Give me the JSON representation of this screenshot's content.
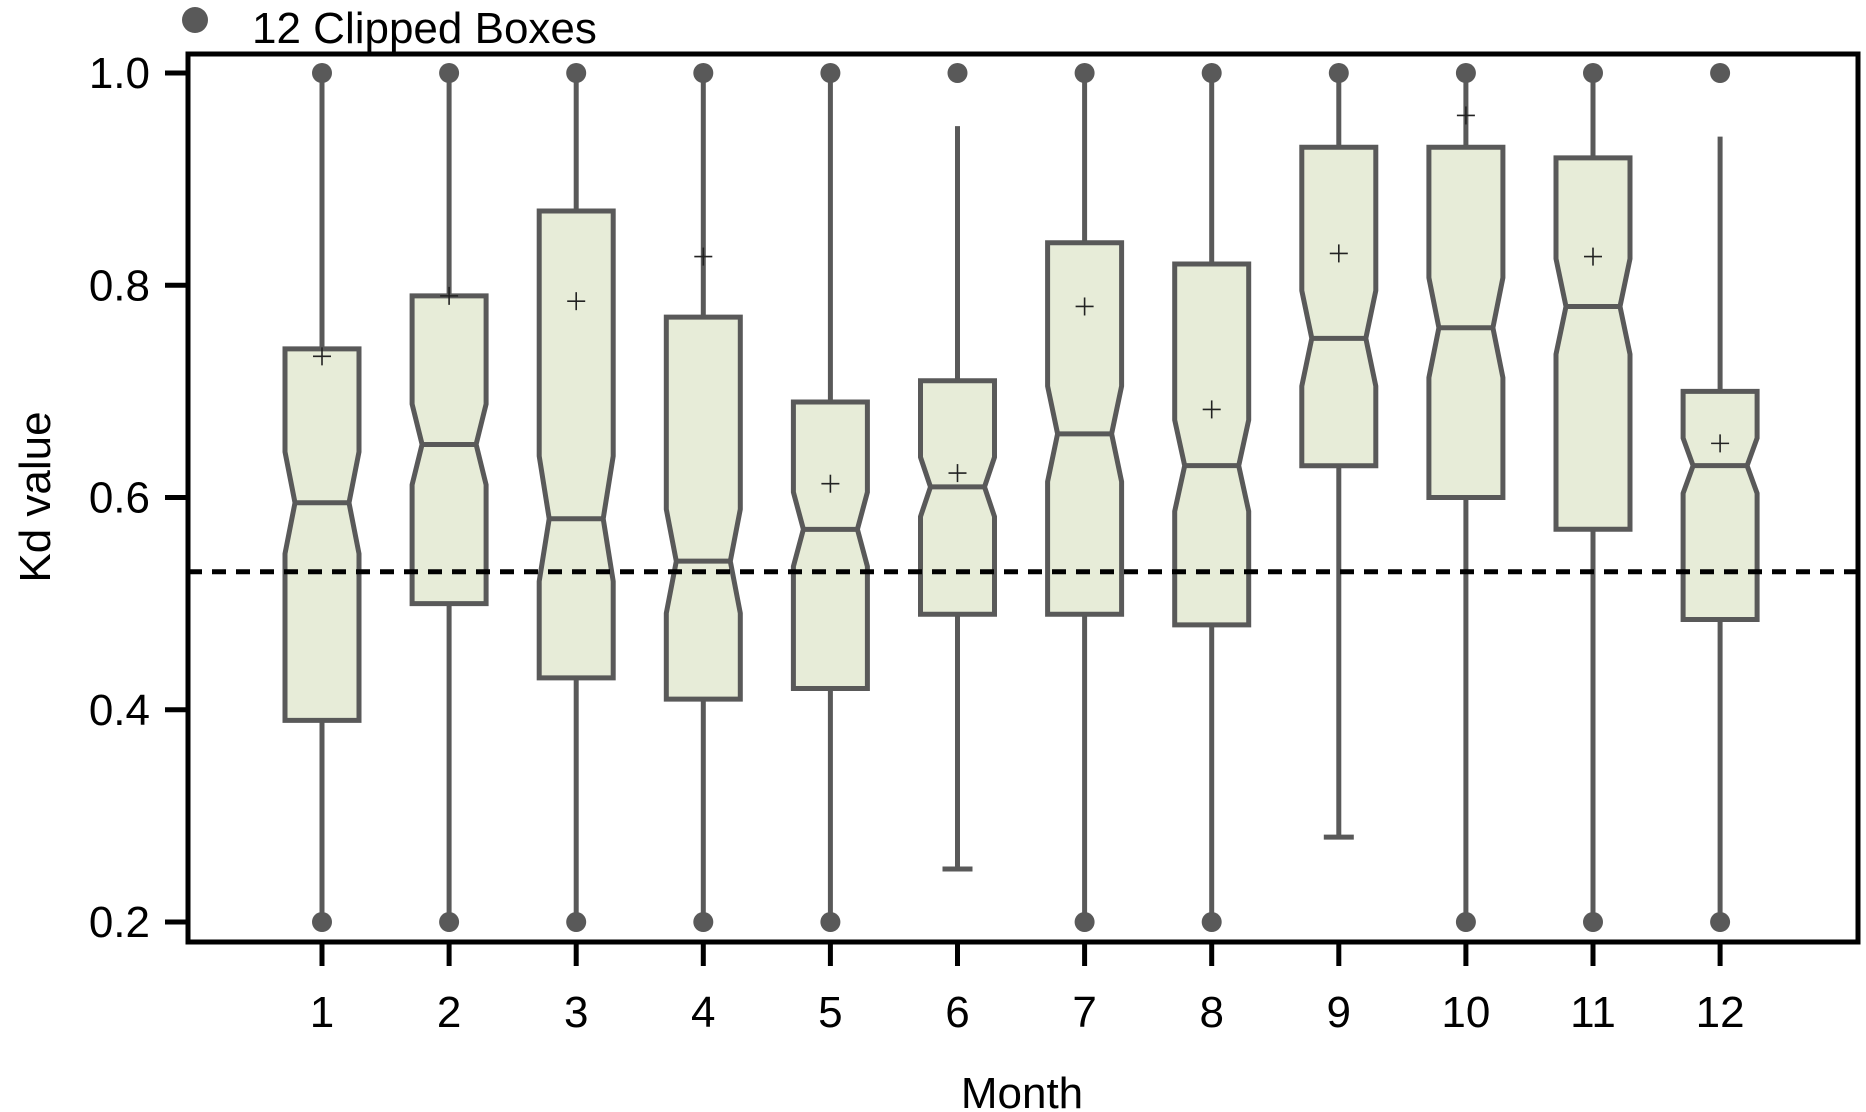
{
  "chart_data": {
    "type": "boxplot",
    "xlabel": "Month",
    "ylabel": "Kd value",
    "ylim": [
      0.2,
      1.0
    ],
    "yticks": [
      "0.2",
      "0.4",
      "0.6",
      "0.8",
      "1.0"
    ],
    "categories": [
      "1",
      "2",
      "3",
      "4",
      "5",
      "6",
      "7",
      "8",
      "9",
      "10",
      "11",
      "12"
    ],
    "legend": {
      "label": "12 Clipped Boxes",
      "placement": "top-left, above plot"
    },
    "reference_line": {
      "y": 0.53,
      "style": "dashed"
    },
    "notched": true,
    "boxes": [
      {
        "month": "1",
        "whisker_low": 0.2,
        "q1": 0.39,
        "median": 0.595,
        "q3": 0.74,
        "whisker_high": 1.0,
        "mean": 0.733,
        "notch_low": 0.547,
        "notch_high": 0.643,
        "clipped_low": true,
        "clipped_high": true
      },
      {
        "month": "2",
        "whisker_low": 0.2,
        "q1": 0.5,
        "median": 0.65,
        "q3": 0.79,
        "whisker_high": 1.0,
        "mean": 0.79,
        "notch_low": 0.612,
        "notch_high": 0.688,
        "clipped_low": true,
        "clipped_high": true
      },
      {
        "month": "3",
        "whisker_low": 0.2,
        "q1": 0.43,
        "median": 0.58,
        "q3": 0.87,
        "whisker_high": 1.0,
        "mean": 0.785,
        "notch_low": 0.521,
        "notch_high": 0.639,
        "clipped_low": true,
        "clipped_high": true
      },
      {
        "month": "4",
        "whisker_low": 0.2,
        "q1": 0.41,
        "median": 0.54,
        "q3": 0.77,
        "whisker_high": 1.0,
        "mean": 0.827,
        "notch_low": 0.491,
        "notch_high": 0.589,
        "clipped_low": true,
        "clipped_high": true
      },
      {
        "month": "5",
        "whisker_low": 0.2,
        "q1": 0.42,
        "median": 0.57,
        "q3": 0.69,
        "whisker_high": 1.0,
        "mean": 0.613,
        "notch_low": 0.535,
        "notch_high": 0.605,
        "clipped_low": true,
        "clipped_high": true
      },
      {
        "month": "6",
        "whisker_low": 0.25,
        "q1": 0.49,
        "median": 0.61,
        "q3": 0.71,
        "whisker_high": 0.95,
        "mean": 0.623,
        "notch_low": 0.582,
        "notch_high": 0.638,
        "clipped_low": false,
        "clipped_high": true
      },
      {
        "month": "7",
        "whisker_low": 0.2,
        "q1": 0.49,
        "median": 0.66,
        "q3": 0.84,
        "whisker_high": 1.0,
        "mean": 0.78,
        "notch_low": 0.615,
        "notch_high": 0.705,
        "clipped_low": true,
        "clipped_high": true
      },
      {
        "month": "8",
        "whisker_low": 0.2,
        "q1": 0.48,
        "median": 0.63,
        "q3": 0.82,
        "whisker_high": 1.0,
        "mean": 0.683,
        "notch_low": 0.587,
        "notch_high": 0.673,
        "clipped_low": true,
        "clipped_high": true
      },
      {
        "month": "9",
        "whisker_low": 0.28,
        "q1": 0.63,
        "median": 0.75,
        "q3": 0.93,
        "whisker_high": 1.0,
        "mean": 0.83,
        "notch_low": 0.705,
        "notch_high": 0.795,
        "clipped_low": false,
        "clipped_high": true
      },
      {
        "month": "10",
        "whisker_low": 0.2,
        "q1": 0.6,
        "median": 0.76,
        "q3": 0.93,
        "whisker_high": 1.0,
        "mean": 0.96,
        "notch_low": 0.713,
        "notch_high": 0.807,
        "clipped_low": true,
        "clipped_high": true
      },
      {
        "month": "11",
        "whisker_low": 0.2,
        "q1": 0.57,
        "median": 0.78,
        "q3": 0.92,
        "whisker_high": 1.0,
        "mean": 0.827,
        "notch_low": 0.735,
        "notch_high": 0.825,
        "clipped_low": true,
        "clipped_high": true
      },
      {
        "month": "12",
        "whisker_low": 0.2,
        "q1": 0.485,
        "median": 0.63,
        "q3": 0.7,
        "whisker_high": 0.94,
        "mean": 0.651,
        "notch_low": 0.604,
        "notch_high": 0.656,
        "clipped_low": true,
        "clipped_high": true
      }
    ],
    "colors": {
      "box_fill": "#e7ecd8",
      "box_stroke": "#595959",
      "reference_line": "#000000",
      "frame": "#000000",
      "outlier_marker": "#595959"
    }
  }
}
